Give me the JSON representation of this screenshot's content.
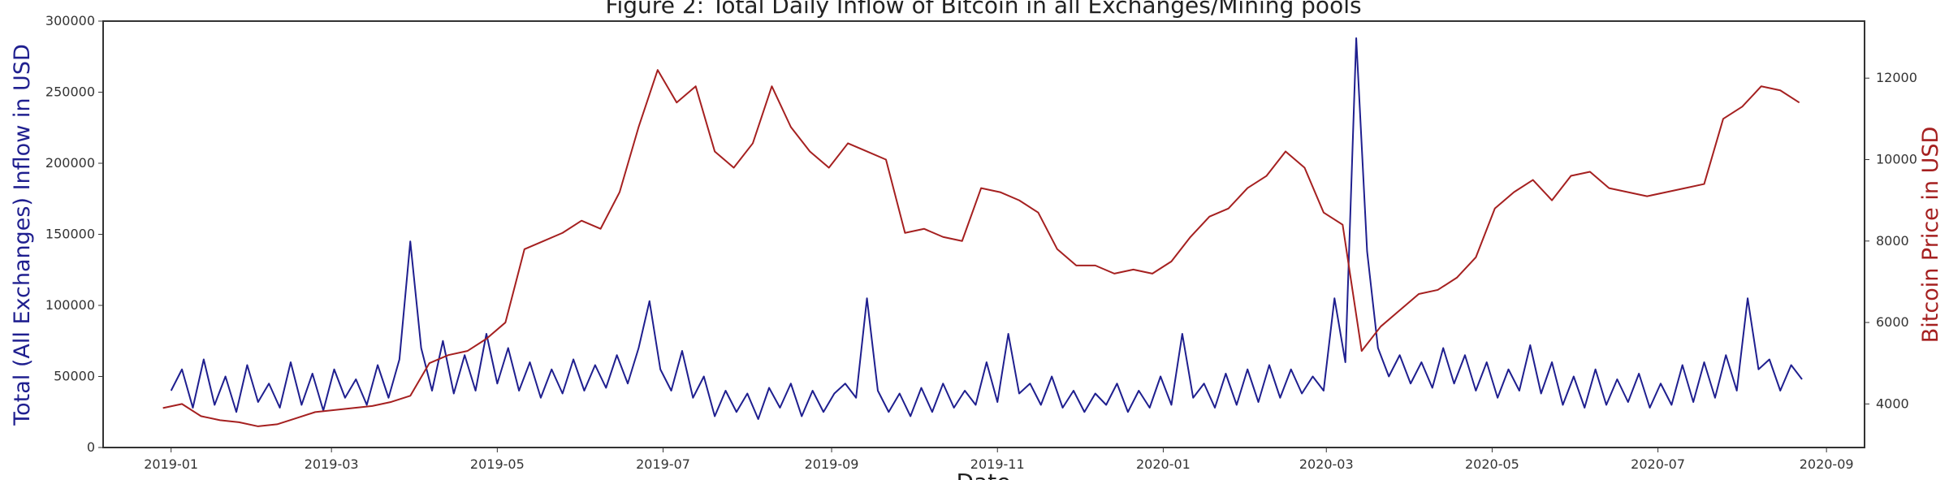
{
  "chart_data": {
    "type": "line",
    "title": "Figure 2: Total Daily Inflow of Bitcoin in all Exchanges/Mining pools",
    "x_label": "Date",
    "y_label": "Total (All Exchanges) Inflow in USD",
    "y2_label": "Bitcoin Price in USD",
    "xlim": [
      -25,
      623
    ],
    "xticks": [
      {
        "value": 0,
        "label": "2019-01"
      },
      {
        "value": 59,
        "label": "2019-03"
      },
      {
        "value": 120,
        "label": "2019-05"
      },
      {
        "value": 181,
        "label": "2019-07"
      },
      {
        "value": 243,
        "label": "2019-09"
      },
      {
        "value": 304,
        "label": "2019-11"
      },
      {
        "value": 365,
        "label": "2020-01"
      },
      {
        "value": 425,
        "label": "2020-03"
      },
      {
        "value": 486,
        "label": "2020-05"
      },
      {
        "value": 547,
        "label": "2020-07"
      },
      {
        "value": 609,
        "label": "2020-09"
      }
    ],
    "ylim": [
      0,
      300000
    ],
    "yticks": [
      0,
      50000,
      100000,
      150000,
      200000,
      250000,
      300000
    ],
    "y2lim": [
      2930,
      13400
    ],
    "y2ticks": [
      4000,
      6000,
      8000,
      10000,
      12000
    ],
    "grid": false,
    "series": [
      {
        "color": "#1f1f8f",
        "x": [
          0,
          4,
          8,
          12,
          16,
          20,
          24,
          28,
          32,
          36,
          40,
          44,
          48,
          52,
          56,
          60,
          64,
          68,
          72,
          76,
          80,
          84,
          88,
          92,
          96,
          100,
          104,
          108,
          112,
          116,
          120,
          124,
          128,
          132,
          136,
          140,
          144,
          148,
          152,
          156,
          160,
          164,
          168,
          172,
          176,
          180,
          184,
          188,
          192,
          196,
          200,
          204,
          208,
          212,
          216,
          220,
          224,
          228,
          232,
          236,
          240,
          244,
          248,
          252,
          256,
          260,
          264,
          268,
          272,
          276,
          280,
          284,
          288,
          292,
          296,
          300,
          304,
          308,
          312,
          316,
          320,
          324,
          328,
          332,
          336,
          340,
          344,
          348,
          352,
          356,
          360,
          364,
          368,
          372,
          376,
          380,
          384,
          388,
          392,
          396,
          400,
          404,
          408,
          412,
          416,
          420,
          424,
          428,
          432,
          436,
          440,
          444,
          448,
          452,
          456,
          460,
          464,
          468,
          472,
          476,
          480,
          484,
          488,
          492,
          496,
          500,
          504,
          508,
          512,
          516,
          520,
          524,
          528,
          532,
          536,
          540,
          544,
          548,
          552,
          556,
          560,
          564,
          568,
          572,
          576,
          580,
          584,
          588,
          592,
          596,
          600
        ],
        "values": [
          40000,
          55000,
          28000,
          62000,
          30000,
          50000,
          25000,
          58000,
          32000,
          45000,
          28000,
          60000,
          30000,
          52000,
          26000,
          55000,
          35000,
          48000,
          30000,
          58000,
          35000,
          62000,
          145000,
          70000,
          40000,
          75000,
          38000,
          65000,
          40000,
          80000,
          45000,
          70000,
          40000,
          60000,
          35000,
          55000,
          38000,
          62000,
          40000,
          58000,
          42000,
          65000,
          45000,
          70000,
          103000,
          55000,
          40000,
          68000,
          35000,
          50000,
          22000,
          40000,
          25000,
          38000,
          20000,
          42000,
          28000,
          45000,
          22000,
          40000,
          25000,
          38000,
          45000,
          35000,
          105000,
          40000,
          25000,
          38000,
          22000,
          42000,
          25000,
          45000,
          28000,
          40000,
          30000,
          60000,
          32000,
          80000,
          38000,
          45000,
          30000,
          50000,
          28000,
          40000,
          25000,
          38000,
          30000,
          45000,
          25000,
          40000,
          28000,
          50000,
          30000,
          80000,
          35000,
          45000,
          28000,
          52000,
          30000,
          55000,
          32000,
          58000,
          35000,
          55000,
          38000,
          50000,
          40000,
          105000,
          60000,
          288000,
          138000,
          70000,
          50000,
          65000,
          45000,
          60000,
          42000,
          70000,
          45000,
          65000,
          40000,
          60000,
          35000,
          55000,
          40000,
          72000,
          38000,
          60000,
          30000,
          50000,
          28000,
          55000,
          30000,
          48000,
          32000,
          52000,
          28000,
          45000,
          30000,
          58000,
          32000,
          60000,
          35000,
          65000,
          40000,
          105000,
          55000,
          62000,
          40000,
          58000,
          48000
        ]
      },
      {
        "color": "#a52020",
        "axis": "y2",
        "x": [
          -3,
          4,
          11,
          18,
          25,
          32,
          39,
          46,
          53,
          60,
          67,
          74,
          81,
          88,
          95,
          102,
          109,
          116,
          123,
          130,
          137,
          144,
          151,
          158,
          165,
          172,
          179,
          186,
          193,
          200,
          207,
          214,
          221,
          228,
          235,
          242,
          249,
          256,
          263,
          270,
          277,
          284,
          291,
          298,
          305,
          312,
          319,
          326,
          333,
          340,
          347,
          354,
          361,
          368,
          375,
          382,
          389,
          396,
          403,
          410,
          417,
          424,
          431,
          438,
          445,
          452,
          459,
          466,
          473,
          480,
          487,
          494,
          501,
          508,
          515,
          522,
          529,
          536,
          543,
          550,
          557,
          564,
          571,
          578,
          585,
          592,
          599
        ],
        "values": [
          3900,
          4000,
          3700,
          3600,
          3550,
          3450,
          3500,
          3650,
          3800,
          3850,
          3900,
          3950,
          4050,
          4200,
          5000,
          5200,
          5300,
          5600,
          6000,
          7800,
          8000,
          8200,
          8500,
          8300,
          9200,
          10800,
          12200,
          11400,
          11800,
          10200,
          9800,
          10400,
          11800,
          10800,
          10200,
          9800,
          10400,
          10200,
          10000,
          8200,
          8300,
          8100,
          8000,
          9300,
          9200,
          9000,
          8700,
          7800,
          7400,
          7400,
          7200,
          7300,
          7200,
          7500,
          8100,
          8600,
          8800,
          9300,
          9600,
          10200,
          9800,
          8700,
          8400,
          5300,
          5900,
          6300,
          6700,
          6800,
          7100,
          7600,
          8800,
          9200,
          9500,
          9000,
          9600,
          9700,
          9300,
          9200,
          9100,
          9200,
          9300,
          9400,
          11000,
          11300,
          11800,
          11700,
          11400
        ]
      }
    ]
  }
}
